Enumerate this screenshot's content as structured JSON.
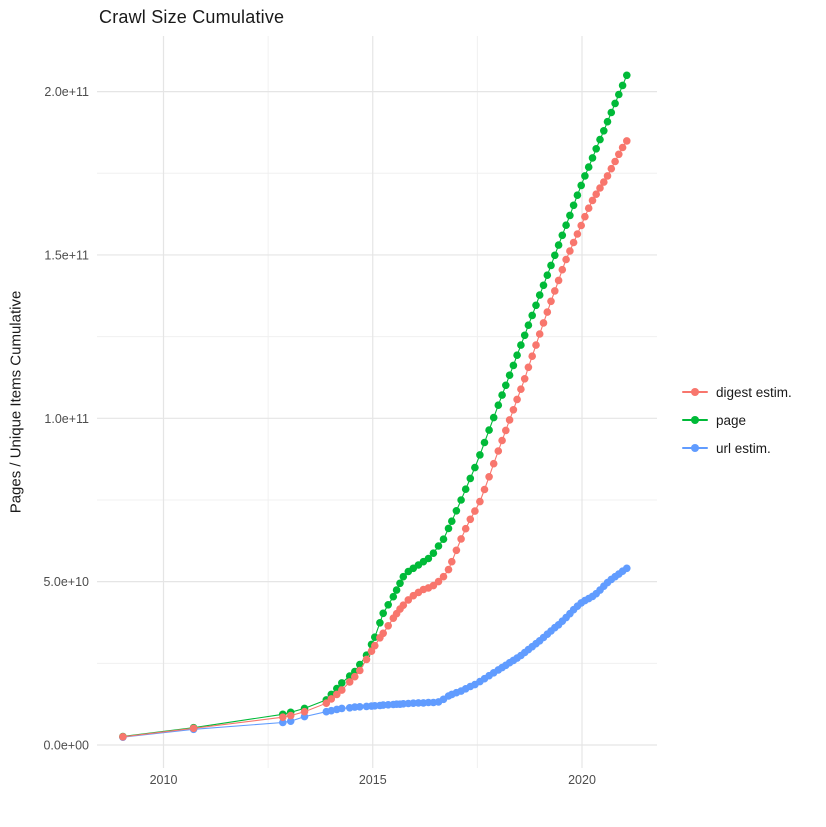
{
  "title": "Crawl Size Cumulative",
  "chart_data": {
    "type": "scatter",
    "title": "Crawl Size Cumulative",
    "xlabel": "",
    "ylabel": "Pages / Unique Items Cumulative",
    "legend_position": "right",
    "grid": true,
    "value_unit": 1000000000,
    "x_range": [
      2008.4,
      2021.8
    ],
    "y_range_e9": [
      -7,
      217
    ],
    "x_tick_values": [
      2010,
      2015,
      2020
    ],
    "x_tick_labels": [
      "2010",
      "2015",
      "2020"
    ],
    "x_minor_values": [
      2012.5,
      2017.5
    ],
    "y_tick_values_e9": [
      0,
      50,
      100,
      150,
      200
    ],
    "y_tick_labels": [
      "0.0e+00",
      "5.0e+10",
      "1.0e+11",
      "1.5e+11",
      "2.0e+11"
    ],
    "y_minor_values_e9": [
      25,
      75,
      125,
      175
    ],
    "series": [
      {
        "name": "digest estim.",
        "color": "#F8766D",
        "points_year_value_e9": [
          [
            2009.03,
            2.5
          ],
          [
            2010.72,
            5.1
          ],
          [
            2012.85,
            8.5
          ],
          [
            2013.04,
            9.0
          ],
          [
            2013.37,
            10.2
          ],
          [
            2013.89,
            12.8
          ],
          [
            2014.01,
            14.1
          ],
          [
            2014.14,
            15.5
          ],
          [
            2014.26,
            16.8
          ],
          [
            2014.45,
            19.3
          ],
          [
            2014.57,
            20.9
          ],
          [
            2014.69,
            22.8
          ],
          [
            2014.85,
            26.2
          ],
          [
            2014.97,
            28.7
          ],
          [
            2015.05,
            30.4
          ],
          [
            2015.17,
            32.8
          ],
          [
            2015.25,
            34.2
          ],
          [
            2015.37,
            36.5
          ],
          [
            2015.49,
            38.8
          ],
          [
            2015.57,
            40.2
          ],
          [
            2015.65,
            41.6
          ],
          [
            2015.73,
            42.8
          ],
          [
            2015.85,
            44.4
          ],
          [
            2015.97,
            45.7
          ],
          [
            2016.09,
            46.7
          ],
          [
            2016.21,
            47.6
          ],
          [
            2016.33,
            48.1
          ],
          [
            2016.45,
            48.8
          ],
          [
            2016.57,
            50.0
          ],
          [
            2016.69,
            51.5
          ],
          [
            2016.81,
            53.7
          ],
          [
            2016.89,
            56.1
          ],
          [
            2017.0,
            59.6
          ],
          [
            2017.11,
            63.1
          ],
          [
            2017.22,
            66.2
          ],
          [
            2017.33,
            69.1
          ],
          [
            2017.44,
            71.6
          ],
          [
            2017.56,
            74.5
          ],
          [
            2017.67,
            78.2
          ],
          [
            2017.78,
            82.1
          ],
          [
            2017.89,
            86.1
          ],
          [
            2018.0,
            90.0
          ],
          [
            2018.09,
            93.2
          ],
          [
            2018.18,
            96.3
          ],
          [
            2018.27,
            99.5
          ],
          [
            2018.36,
            102.6
          ],
          [
            2018.45,
            105.8
          ],
          [
            2018.54,
            108.9
          ],
          [
            2018.63,
            112.1
          ],
          [
            2018.72,
            115.6
          ],
          [
            2018.81,
            119.0
          ],
          [
            2018.9,
            122.4
          ],
          [
            2018.99,
            125.8
          ],
          [
            2019.08,
            129.2
          ],
          [
            2019.17,
            132.5
          ],
          [
            2019.26,
            135.8
          ],
          [
            2019.35,
            139.0
          ],
          [
            2019.44,
            142.2
          ],
          [
            2019.53,
            145.5
          ],
          [
            2019.62,
            148.6
          ],
          [
            2019.71,
            151.2
          ],
          [
            2019.8,
            153.8
          ],
          [
            2019.89,
            156.4
          ],
          [
            2019.98,
            159.0
          ],
          [
            2020.07,
            161.7
          ],
          [
            2020.16,
            164.3
          ],
          [
            2020.25,
            166.7
          ],
          [
            2020.34,
            168.6
          ],
          [
            2020.43,
            170.5
          ],
          [
            2020.52,
            172.3
          ],
          [
            2020.61,
            174.2
          ],
          [
            2020.7,
            176.4
          ],
          [
            2020.79,
            178.6
          ],
          [
            2020.88,
            180.8
          ],
          [
            2020.97,
            182.9
          ],
          [
            2021.07,
            184.9
          ]
        ]
      },
      {
        "name": "page",
        "color": "#00BA38",
        "points_year_value_e9": [
          [
            2009.03,
            2.6
          ],
          [
            2010.72,
            5.3
          ],
          [
            2012.85,
            9.4
          ],
          [
            2013.04,
            10.0
          ],
          [
            2013.37,
            11.2
          ],
          [
            2013.89,
            13.8
          ],
          [
            2014.01,
            15.5
          ],
          [
            2014.14,
            17.3
          ],
          [
            2014.26,
            19.0
          ],
          [
            2014.45,
            21.1
          ],
          [
            2014.57,
            22.5
          ],
          [
            2014.69,
            24.6
          ],
          [
            2014.85,
            27.5
          ],
          [
            2014.97,
            30.8
          ],
          [
            2015.05,
            33.0
          ],
          [
            2015.17,
            37.4
          ],
          [
            2015.25,
            40.3
          ],
          [
            2015.37,
            42.9
          ],
          [
            2015.49,
            45.4
          ],
          [
            2015.57,
            47.4
          ],
          [
            2015.65,
            49.5
          ],
          [
            2015.73,
            51.5
          ],
          [
            2015.85,
            53.1
          ],
          [
            2015.97,
            54.1
          ],
          [
            2016.09,
            55.1
          ],
          [
            2016.21,
            56.1
          ],
          [
            2016.33,
            57.1
          ],
          [
            2016.45,
            58.7
          ],
          [
            2016.57,
            60.9
          ],
          [
            2016.69,
            63.0
          ],
          [
            2016.81,
            66.3
          ],
          [
            2016.89,
            68.5
          ],
          [
            2017.0,
            71.7
          ],
          [
            2017.11,
            75.0
          ],
          [
            2017.22,
            78.3
          ],
          [
            2017.33,
            81.6
          ],
          [
            2017.44,
            84.9
          ],
          [
            2017.56,
            88.8
          ],
          [
            2017.67,
            92.6
          ],
          [
            2017.78,
            96.4
          ],
          [
            2017.89,
            100.2
          ],
          [
            2018.0,
            104.0
          ],
          [
            2018.09,
            107.1
          ],
          [
            2018.18,
            110.1
          ],
          [
            2018.27,
            113.2
          ],
          [
            2018.36,
            116.2
          ],
          [
            2018.45,
            119.3
          ],
          [
            2018.54,
            122.4
          ],
          [
            2018.63,
            125.4
          ],
          [
            2018.72,
            128.5
          ],
          [
            2018.81,
            131.5
          ],
          [
            2018.9,
            134.6
          ],
          [
            2018.99,
            137.7
          ],
          [
            2019.08,
            140.7
          ],
          [
            2019.17,
            143.8
          ],
          [
            2019.26,
            146.8
          ],
          [
            2019.35,
            149.9
          ],
          [
            2019.44,
            153.0
          ],
          [
            2019.53,
            156.0
          ],
          [
            2019.62,
            159.1
          ],
          [
            2019.71,
            162.1
          ],
          [
            2019.8,
            165.2
          ],
          [
            2019.89,
            168.3
          ],
          [
            2019.98,
            171.3
          ],
          [
            2020.07,
            174.2
          ],
          [
            2020.16,
            176.9
          ],
          [
            2020.25,
            179.7
          ],
          [
            2020.34,
            182.5
          ],
          [
            2020.43,
            185.3
          ],
          [
            2020.52,
            188.0
          ],
          [
            2020.61,
            190.8
          ],
          [
            2020.7,
            193.6
          ],
          [
            2020.79,
            196.4
          ],
          [
            2020.88,
            199.1
          ],
          [
            2020.97,
            201.9
          ],
          [
            2021.07,
            205.0
          ]
        ]
      },
      {
        "name": "url estim.",
        "color": "#619CFF",
        "points_year_value_e9": [
          [
            2009.03,
            2.4
          ],
          [
            2010.72,
            4.8
          ],
          [
            2012.85,
            6.9
          ],
          [
            2013.04,
            7.3
          ],
          [
            2013.37,
            8.7
          ],
          [
            2013.89,
            10.2
          ],
          [
            2014.01,
            10.5
          ],
          [
            2014.14,
            10.9
          ],
          [
            2014.26,
            11.2
          ],
          [
            2014.45,
            11.4
          ],
          [
            2014.57,
            11.6
          ],
          [
            2014.69,
            11.7
          ],
          [
            2014.85,
            11.8
          ],
          [
            2014.97,
            11.9
          ],
          [
            2015.05,
            12.0
          ],
          [
            2015.17,
            12.1
          ],
          [
            2015.25,
            12.2
          ],
          [
            2015.37,
            12.3
          ],
          [
            2015.49,
            12.4
          ],
          [
            2015.57,
            12.5
          ],
          [
            2015.65,
            12.5
          ],
          [
            2015.73,
            12.6
          ],
          [
            2015.85,
            12.7
          ],
          [
            2015.97,
            12.8
          ],
          [
            2016.09,
            12.9
          ],
          [
            2016.21,
            12.9
          ],
          [
            2016.33,
            13.0
          ],
          [
            2016.45,
            13.0
          ],
          [
            2016.57,
            13.2
          ],
          [
            2016.69,
            14.0
          ],
          [
            2016.81,
            15.0
          ],
          [
            2016.89,
            15.5
          ],
          [
            2017.0,
            16.0
          ],
          [
            2017.11,
            16.5
          ],
          [
            2017.22,
            17.2
          ],
          [
            2017.33,
            17.9
          ],
          [
            2017.44,
            18.5
          ],
          [
            2017.56,
            19.4
          ],
          [
            2017.67,
            20.3
          ],
          [
            2017.78,
            21.2
          ],
          [
            2017.89,
            22.1
          ],
          [
            2018.0,
            23.0
          ],
          [
            2018.09,
            23.7
          ],
          [
            2018.18,
            24.4
          ],
          [
            2018.27,
            25.2
          ],
          [
            2018.36,
            25.9
          ],
          [
            2018.45,
            26.6
          ],
          [
            2018.54,
            27.4
          ],
          [
            2018.63,
            28.3
          ],
          [
            2018.72,
            29.2
          ],
          [
            2018.81,
            30.1
          ],
          [
            2018.9,
            31.0
          ],
          [
            2018.99,
            31.9
          ],
          [
            2019.08,
            32.9
          ],
          [
            2019.17,
            33.9
          ],
          [
            2019.26,
            34.9
          ],
          [
            2019.35,
            35.9
          ],
          [
            2019.44,
            36.8
          ],
          [
            2019.53,
            37.9
          ],
          [
            2019.62,
            39.0
          ],
          [
            2019.71,
            40.2
          ],
          [
            2019.8,
            41.4
          ],
          [
            2019.89,
            42.5
          ],
          [
            2019.98,
            43.5
          ],
          [
            2020.07,
            44.2
          ],
          [
            2020.16,
            44.8
          ],
          [
            2020.25,
            45.5
          ],
          [
            2020.34,
            46.3
          ],
          [
            2020.43,
            47.4
          ],
          [
            2020.52,
            48.6
          ],
          [
            2020.61,
            49.7
          ],
          [
            2020.7,
            50.7
          ],
          [
            2020.79,
            51.5
          ],
          [
            2020.88,
            52.3
          ],
          [
            2020.97,
            53.2
          ],
          [
            2021.07,
            54.1
          ]
        ]
      }
    ],
    "style": {
      "major_grid_color": "#e5e5e5",
      "minor_grid_color": "#f0f0f0",
      "background": "#ffffff",
      "tick_label_color": "#4d4d4d"
    }
  },
  "legend": {
    "items": [
      {
        "label": "digest estim.",
        "color": "#F8766D"
      },
      {
        "label": "page",
        "color": "#00BA38"
      },
      {
        "label": "url estim.",
        "color": "#619CFF"
      }
    ]
  }
}
